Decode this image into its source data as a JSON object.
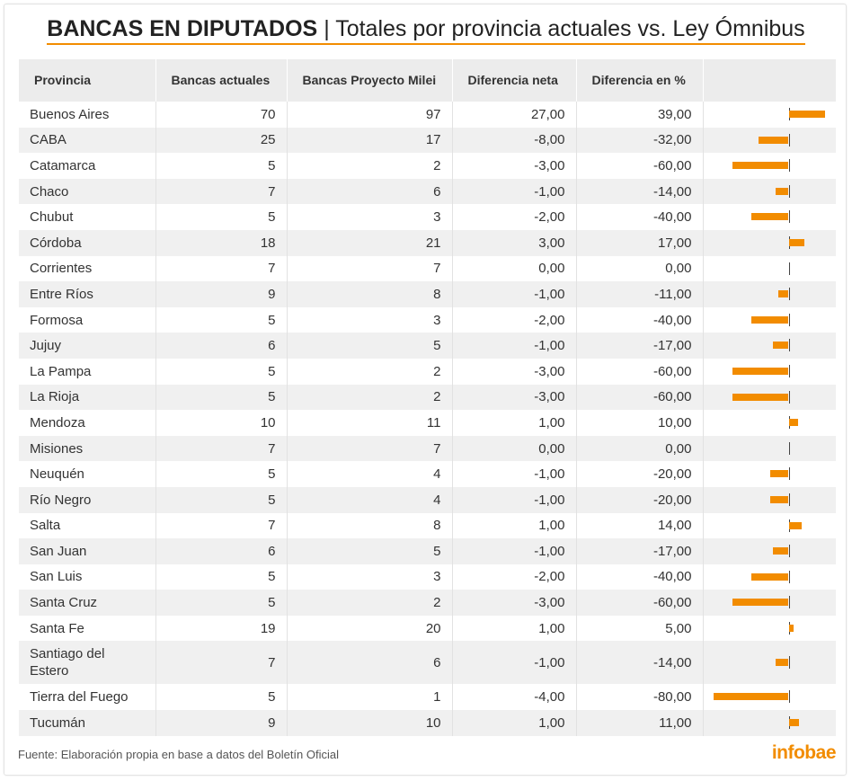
{
  "title": {
    "bold": "BANCAS EN DIPUTADOS",
    "separator": "|",
    "rest": "Totales por provincia actuales vs. Ley Ómnibus"
  },
  "colors": {
    "accent": "#f28c00",
    "zero_line": "#444444",
    "stripe": "#f0f0f0",
    "header_bg": "#ececec"
  },
  "chart_data": {
    "type": "table",
    "title": "BANCAS EN DIPUTADOS | Totales por provincia actuales vs. Ley Ómnibus",
    "columns": [
      "Provincia",
      "Bancas actuales",
      "Bancas Proyecto Milei",
      "Diferencia neta",
      "Diferencia en %",
      ""
    ],
    "bar_column": {
      "source": "Diferencia en %",
      "domain": [
        -80,
        39
      ]
    },
    "rows": [
      {
        "provincia": "Buenos Aires",
        "actuales": "70",
        "proyecto": "97",
        "neta": "27,00",
        "pct": "39,00",
        "pct_value": 39
      },
      {
        "provincia": "CABA",
        "actuales": "25",
        "proyecto": "17",
        "neta": "-8,00",
        "pct": "-32,00",
        "pct_value": -32
      },
      {
        "provincia": "Catamarca",
        "actuales": "5",
        "proyecto": "2",
        "neta": "-3,00",
        "pct": "-60,00",
        "pct_value": -60
      },
      {
        "provincia": "Chaco",
        "actuales": "7",
        "proyecto": "6",
        "neta": "-1,00",
        "pct": "-14,00",
        "pct_value": -14
      },
      {
        "provincia": "Chubut",
        "actuales": "5",
        "proyecto": "3",
        "neta": "-2,00",
        "pct": "-40,00",
        "pct_value": -40
      },
      {
        "provincia": "Córdoba",
        "actuales": "18",
        "proyecto": "21",
        "neta": "3,00",
        "pct": "17,00",
        "pct_value": 17
      },
      {
        "provincia": "Corrientes",
        "actuales": "7",
        "proyecto": "7",
        "neta": "0,00",
        "pct": "0,00",
        "pct_value": 0
      },
      {
        "provincia": "Entre Ríos",
        "actuales": "9",
        "proyecto": "8",
        "neta": "-1,00",
        "pct": "-11,00",
        "pct_value": -11
      },
      {
        "provincia": "Formosa",
        "actuales": "5",
        "proyecto": "3",
        "neta": "-2,00",
        "pct": "-40,00",
        "pct_value": -40
      },
      {
        "provincia": "Jujuy",
        "actuales": "6",
        "proyecto": "5",
        "neta": "-1,00",
        "pct": "-17,00",
        "pct_value": -17
      },
      {
        "provincia": "La Pampa",
        "actuales": "5",
        "proyecto": "2",
        "neta": "-3,00",
        "pct": "-60,00",
        "pct_value": -60
      },
      {
        "provincia": "La Rioja",
        "actuales": "5",
        "proyecto": "2",
        "neta": "-3,00",
        "pct": "-60,00",
        "pct_value": -60
      },
      {
        "provincia": "Mendoza",
        "actuales": "10",
        "proyecto": "11",
        "neta": "1,00",
        "pct": "10,00",
        "pct_value": 10
      },
      {
        "provincia": "Misiones",
        "actuales": "7",
        "proyecto": "7",
        "neta": "0,00",
        "pct": "0,00",
        "pct_value": 0
      },
      {
        "provincia": "Neuquén",
        "actuales": "5",
        "proyecto": "4",
        "neta": "-1,00",
        "pct": "-20,00",
        "pct_value": -20
      },
      {
        "provincia": "Río Negro",
        "actuales": "5",
        "proyecto": "4",
        "neta": "-1,00",
        "pct": "-20,00",
        "pct_value": -20
      },
      {
        "provincia": "Salta",
        "actuales": "7",
        "proyecto": "8",
        "neta": "1,00",
        "pct": "14,00",
        "pct_value": 14
      },
      {
        "provincia": "San Juan",
        "actuales": "6",
        "proyecto": "5",
        "neta": "-1,00",
        "pct": "-17,00",
        "pct_value": -17
      },
      {
        "provincia": "San Luis",
        "actuales": "5",
        "proyecto": "3",
        "neta": "-2,00",
        "pct": "-40,00",
        "pct_value": -40
      },
      {
        "provincia": "Santa Cruz",
        "actuales": "5",
        "proyecto": "2",
        "neta": "-3,00",
        "pct": "-60,00",
        "pct_value": -60
      },
      {
        "provincia": "Santa Fe",
        "actuales": "19",
        "proyecto": "20",
        "neta": "1,00",
        "pct": "5,00",
        "pct_value": 5
      },
      {
        "provincia": "Santiago del Estero",
        "actuales": "7",
        "proyecto": "6",
        "neta": "-1,00",
        "pct": "-14,00",
        "pct_value": -14
      },
      {
        "provincia": "Tierra del Fuego",
        "actuales": "5",
        "proyecto": "1",
        "neta": "-4,00",
        "pct": "-80,00",
        "pct_value": -80
      },
      {
        "provincia": "Tucumán",
        "actuales": "9",
        "proyecto": "10",
        "neta": "1,00",
        "pct": "11,00",
        "pct_value": 11
      }
    ]
  },
  "footer": {
    "source": "Fuente: Elaboración propia en base a datos del Boletín Oficial",
    "logo": "infobae"
  }
}
